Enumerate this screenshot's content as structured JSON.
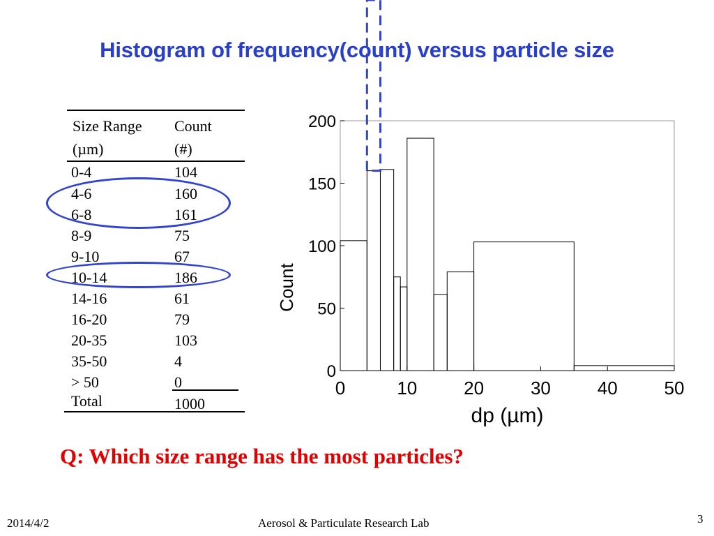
{
  "slide": {
    "title": "Histogram of frequency(count) versus particle size",
    "question": "Q: Which size range has the most particles?",
    "footer_date": "2014/4/2",
    "footer_lab": "Aerosol & Particulate Research Lab",
    "page_number": "3"
  },
  "table": {
    "col1_header_line1": "Size Range",
    "col1_header_line2": "(µm)",
    "col2_header_line1": "Count",
    "col2_header_line2": "(#)",
    "rows": [
      {
        "range": "0-4",
        "count": "104"
      },
      {
        "range": "4-6",
        "count": "160"
      },
      {
        "range": "6-8",
        "count": "161"
      },
      {
        "range": "8-9",
        "count": "75"
      },
      {
        "range": "9-10",
        "count": "67"
      },
      {
        "range": "10-14",
        "count": "186"
      },
      {
        "range": "14-16",
        "count": "61"
      },
      {
        "range": "16-20",
        "count": "79"
      },
      {
        "range": "20-35",
        "count": "103"
      },
      {
        "range": "35-50",
        "count": "4"
      },
      {
        "range": "> 50",
        "count": "0"
      }
    ],
    "total_label": "Total",
    "total_value": "1000",
    "highlighted_rows": [
      "4-6",
      "6-8",
      "10-14"
    ],
    "highlight_color": "#3344cc"
  },
  "chart_data": {
    "type": "histogram",
    "title": "",
    "xlabel": "dp (µm)",
    "ylabel": "Count",
    "xlim": [
      0,
      50
    ],
    "ylim": [
      0,
      200
    ],
    "y_ticks": [
      0,
      50,
      100,
      150,
      200
    ],
    "x_ticks": [
      0,
      10,
      20,
      30,
      40,
      50
    ],
    "bins": [
      {
        "from": 0,
        "to": 4,
        "count": 104
      },
      {
        "from": 4,
        "to": 6,
        "count": 160
      },
      {
        "from": 6,
        "to": 8,
        "count": 161
      },
      {
        "from": 8,
        "to": 9,
        "count": 75
      },
      {
        "from": 9,
        "to": 10,
        "count": 67
      },
      {
        "from": 10,
        "to": 14,
        "count": 186
      },
      {
        "from": 14,
        "to": 16,
        "count": 61
      },
      {
        "from": 16,
        "to": 20,
        "count": 79
      },
      {
        "from": 20,
        "to": 35,
        "count": 103
      },
      {
        "from": 35,
        "to": 50,
        "count": 4
      }
    ],
    "highlight_bin": {
      "from": 4,
      "to": 6
    },
    "highlight_color": "#3344cc",
    "grid": false
  }
}
